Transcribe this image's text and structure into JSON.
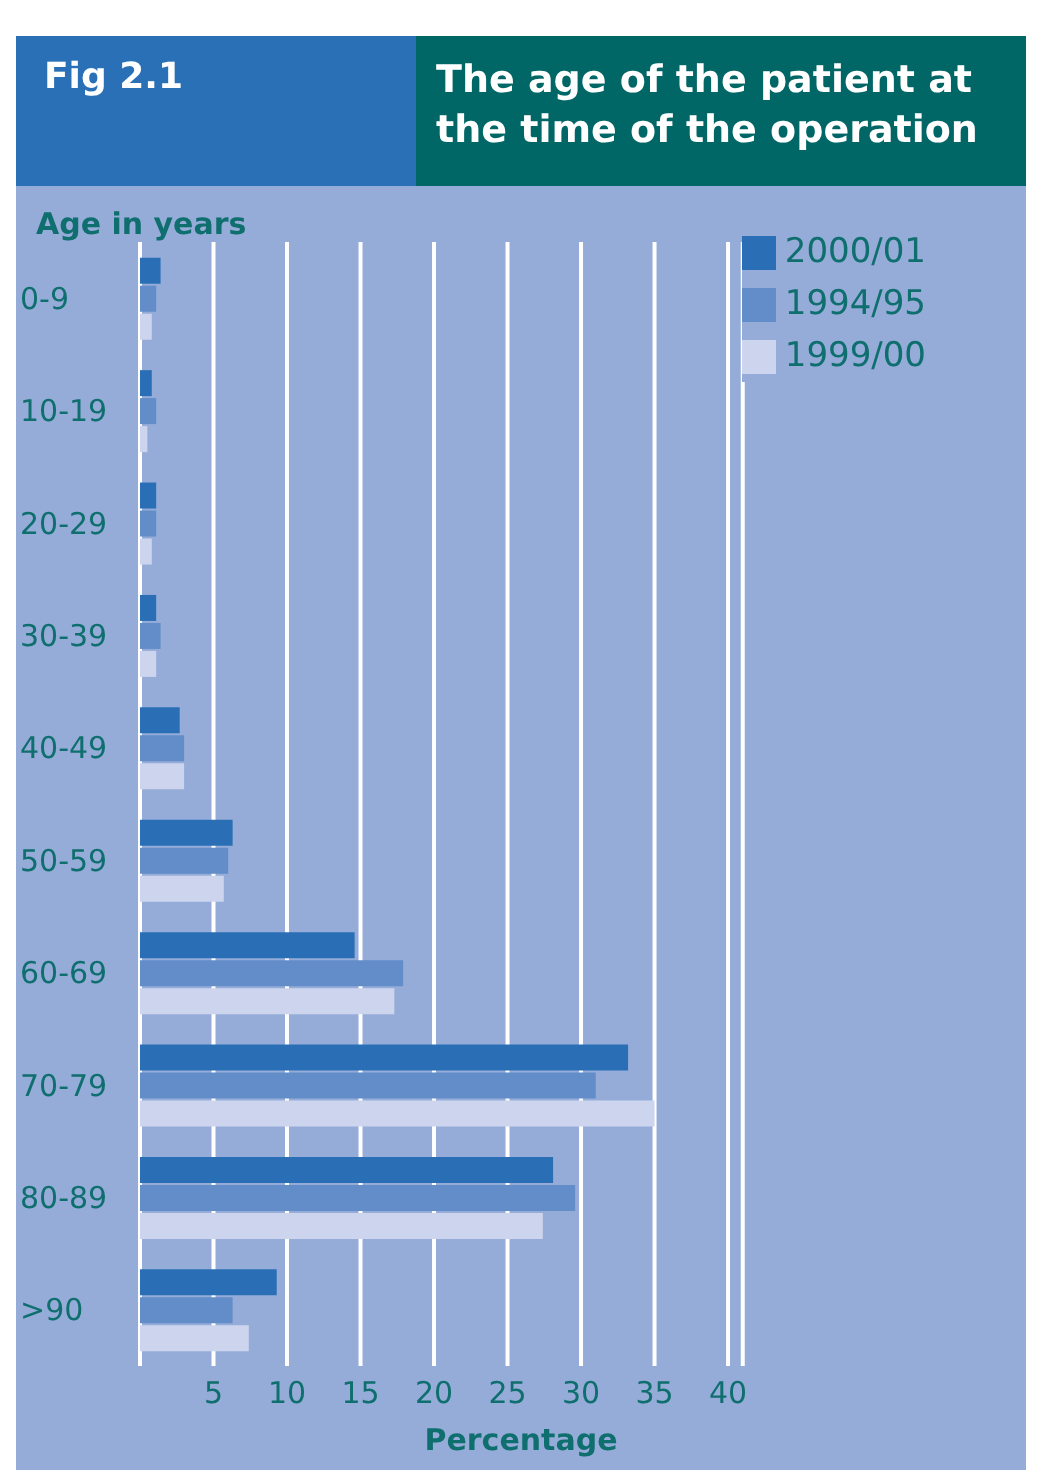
{
  "chart_data": {
    "type": "bar",
    "orientation": "horizontal",
    "title": "The age of the patient at the time of the operation",
    "annotations": [
      "Fig 2.1"
    ],
    "xlabel": "Percentage",
    "ylabel": "Age in years",
    "categories": [
      "0-9",
      "10-19",
      "20-29",
      "30-39",
      "40-49",
      "50-59",
      "60-69",
      "70-79",
      "80-89",
      ">90"
    ],
    "series": [
      {
        "name": "2000/01",
        "color": "#2a6fb5",
        "values": [
          1.4,
          0.8,
          1.1,
          1.1,
          2.7,
          6.3,
          14.6,
          33.2,
          28.1,
          9.3
        ]
      },
      {
        "name": "1994/95",
        "color": "#628dc9",
        "values": [
          1.1,
          1.1,
          1.1,
          1.4,
          3.0,
          6.0,
          17.9,
          31.0,
          29.6,
          6.3
        ]
      },
      {
        "name": "1999/00",
        "color": "#cdd5ee",
        "values": [
          0.8,
          0.5,
          0.8,
          1.1,
          3.0,
          5.7,
          17.3,
          35.0,
          27.4,
          7.4
        ]
      }
    ],
    "xlim": [
      0,
      41
    ],
    "xticks": [
      5,
      10,
      15,
      20,
      25,
      30,
      35,
      40
    ],
    "grid": "x",
    "legend": "top right"
  }
}
